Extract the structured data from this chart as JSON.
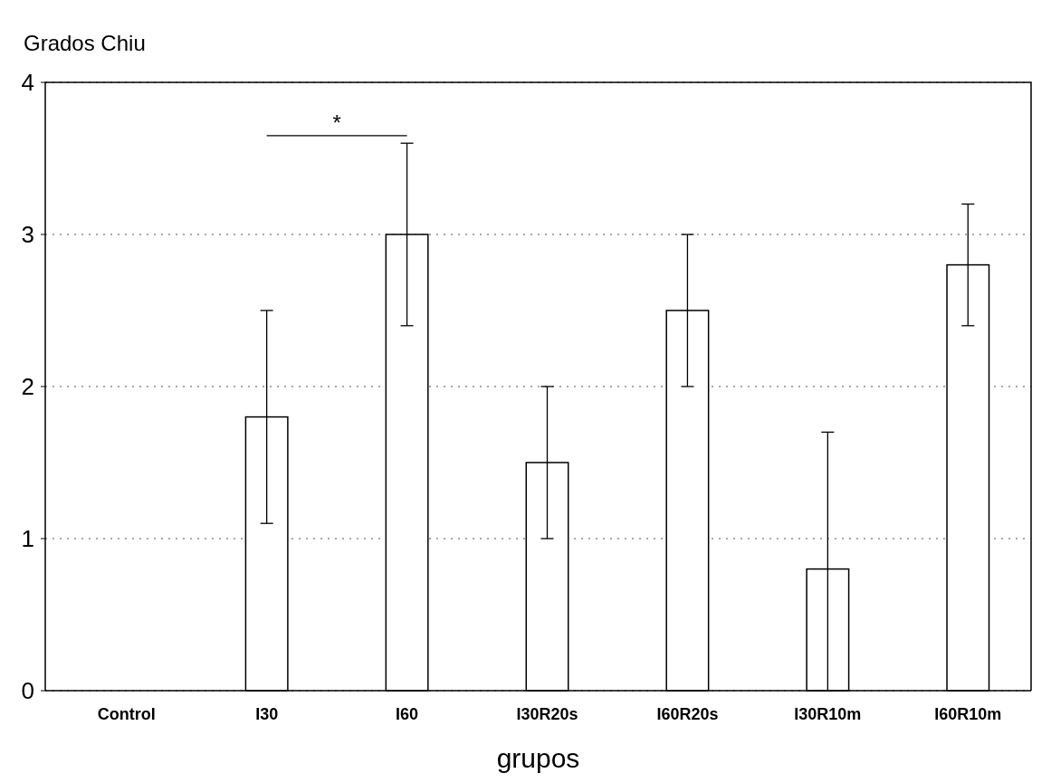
{
  "chart_data": {
    "type": "bar",
    "ylabel": "Grados Chiu",
    "xlabel": "grupos",
    "categories": [
      "Control",
      "I30",
      "I60",
      "I30R20s",
      "I60R20s",
      "I30R10m",
      "I60R10m"
    ],
    "values": [
      0,
      1.8,
      3.0,
      1.5,
      2.5,
      0.8,
      2.8
    ],
    "errors": [
      null,
      [
        1.1,
        2.5
      ],
      [
        2.4,
        3.6
      ],
      [
        1.0,
        2.0
      ],
      [
        2.0,
        3.0
      ],
      [
        0,
        1.7
      ],
      [
        2.4,
        3.2
      ]
    ],
    "color": "#ffffff",
    "ylim": [
      0,
      4
    ],
    "yticks": [
      0,
      1,
      2,
      3,
      4
    ],
    "grid": "y",
    "annotations": [
      "*"
    ]
  }
}
